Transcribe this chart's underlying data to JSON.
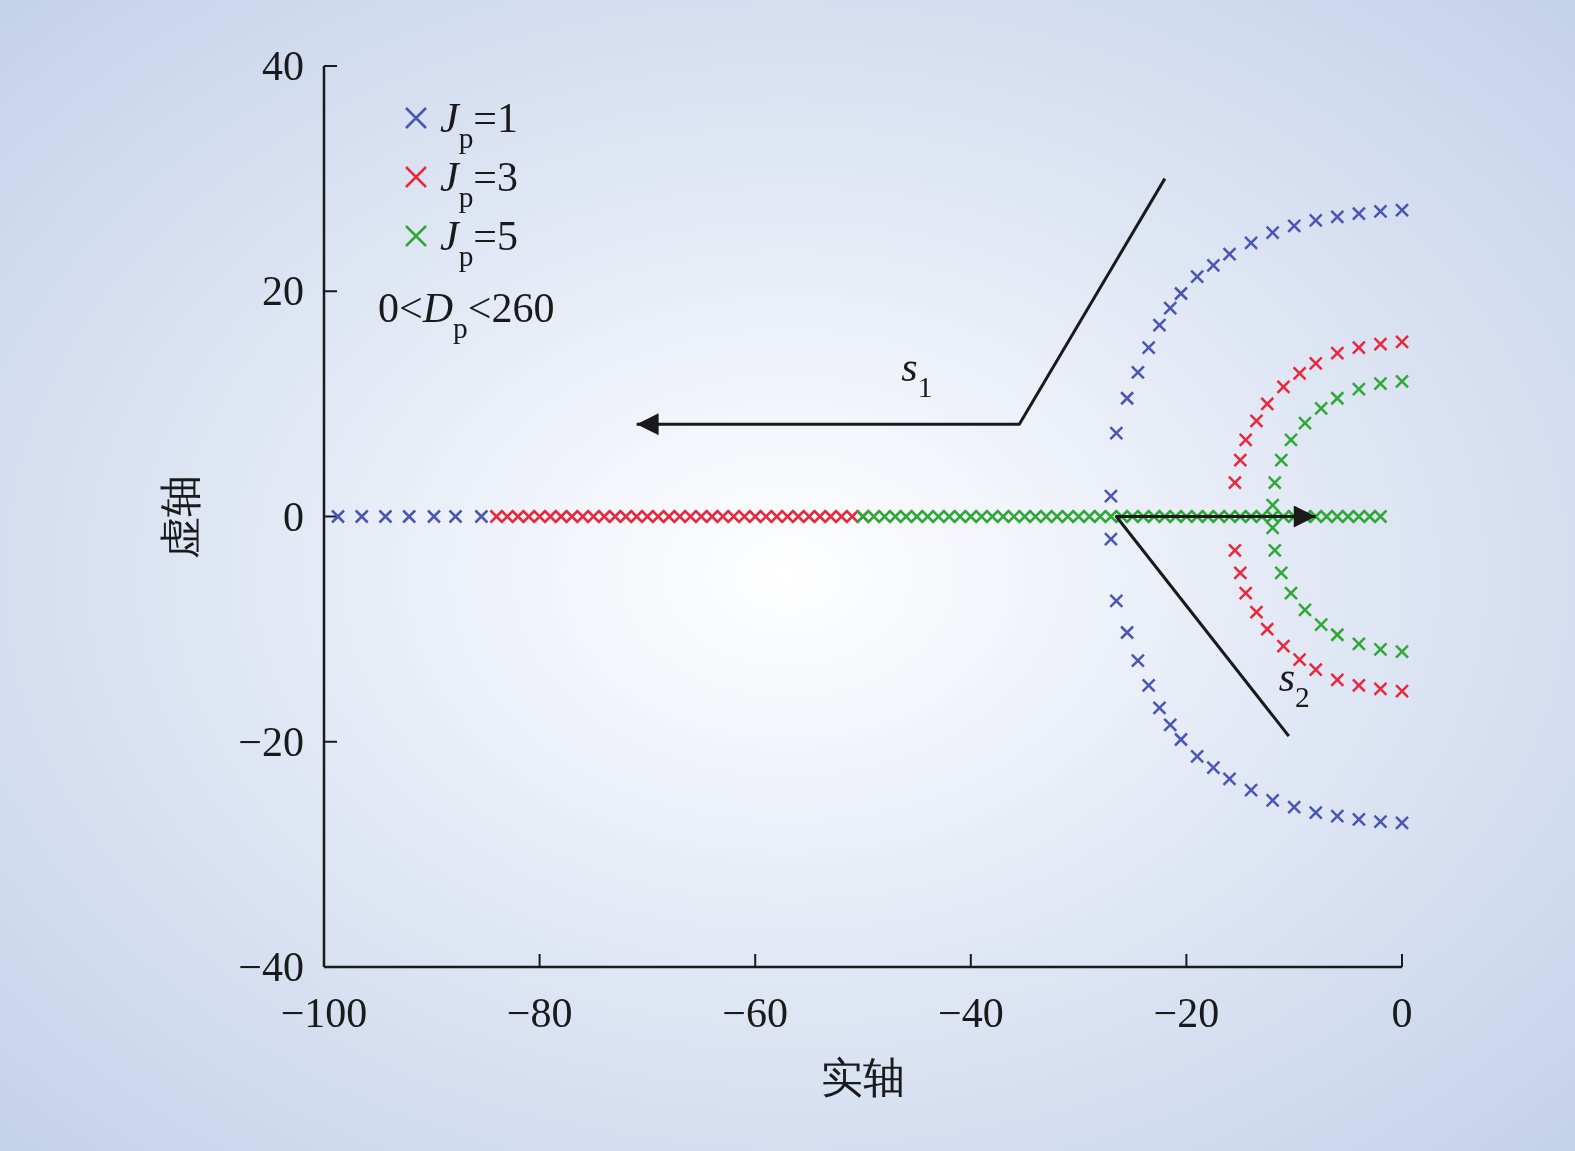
{
  "chart_data": {
    "type": "scatter",
    "xlabel": "实轴",
    "ylabel": "虚轴",
    "xlim": [
      -100,
      0
    ],
    "ylim": [
      -40,
      40
    ],
    "xticks": [
      -100,
      -80,
      -60,
      -40,
      -20,
      0
    ],
    "yticks": [
      -40,
      -20,
      0,
      20,
      40
    ],
    "grid": false,
    "legend": "top left",
    "marker": "cross",
    "series": [
      {
        "name": "*J*$_{p}$=1",
        "color": "#4a55b5",
        "x": [
          -98.7,
          -96.5,
          -94.3,
          -92.1,
          -89.8,
          -87.8,
          -85.4,
          -27,
          -26.5,
          -25.5,
          -24.5,
          -23.5,
          -22.5,
          -21.5,
          -20.5,
          -19,
          -17.5,
          -16,
          -14,
          -12,
          -10,
          -8,
          -6,
          -4,
          -2,
          0,
          -27,
          -26.5,
          -25.5,
          -24.5,
          -23.5,
          -22.5,
          -21.5,
          -20.5,
          -19,
          -17.5,
          -16,
          -14,
          -12,
          -10,
          -8,
          -6,
          -4,
          -2,
          0
        ],
        "values": [
          0,
          0,
          0,
          0,
          0,
          0,
          0,
          1.8,
          7.4,
          10.5,
          12.8,
          15,
          17,
          18.5,
          19.8,
          21.3,
          22.3,
          23.3,
          24.3,
          25.2,
          25.8,
          26.3,
          26.6,
          26.9,
          27.1,
          27.2,
          -2,
          -7.5,
          -10.3,
          -12.8,
          -15,
          -17,
          -18.5,
          -19.8,
          -21.3,
          -22.3,
          -23.3,
          -24.3,
          -25.2,
          -25.8,
          -26.3,
          -26.6,
          -26.9,
          -27.1,
          -27.2
        ]
      },
      {
        "name": "*J*$_{p}$=3",
        "color": "#e8283c",
        "x": [
          -84,
          -83,
          -82,
          -81,
          -80,
          -79,
          -78,
          -77,
          -76,
          -75,
          -74,
          -73,
          -72,
          -71,
          -70,
          -69,
          -68,
          -67,
          -66,
          -65,
          -64,
          -63,
          -62,
          -61,
          -60,
          -59,
          -58,
          -57,
          -56,
          -55,
          -54,
          -53,
          -52,
          -51,
          -50,
          -15.5,
          -15,
          -14.5,
          -13.5,
          -12.5,
          -11,
          -9.5,
          -8,
          -6,
          -4,
          -2,
          0,
          -15.5,
          -15,
          -14.5,
          -13.5,
          -12.5,
          -11,
          -9.5,
          -8,
          -6,
          -4,
          -2,
          0
        ],
        "values": [
          0,
          0,
          0,
          0,
          0,
          0,
          0,
          0,
          0,
          0,
          0,
          0,
          0,
          0,
          0,
          0,
          0,
          0,
          0,
          0,
          0,
          0,
          0,
          0,
          0,
          0,
          0,
          0,
          0,
          0,
          0,
          0,
          0,
          0,
          0,
          3,
          5,
          6.8,
          8.5,
          10,
          11.5,
          12.7,
          13.6,
          14.5,
          15,
          15.3,
          15.5,
          -3,
          -5,
          -6.8,
          -8.5,
          -10,
          -11.5,
          -12.7,
          -13.6,
          -14.5,
          -15,
          -15.3,
          -15.5
        ]
      },
      {
        "name": "*J*$_{p}$=5",
        "color": "#2ea836",
        "x": [
          -50,
          -49,
          -48,
          -47,
          -46,
          -45,
          -44,
          -43,
          -42,
          -41,
          -40,
          -39,
          -38,
          -37,
          -36,
          -35,
          -34,
          -33,
          -32,
          -31,
          -30,
          -29,
          -28,
          -27,
          -26,
          -25,
          -24,
          -23,
          -22,
          -21,
          -20,
          -19,
          -18,
          -17,
          -16,
          -15,
          -14,
          -13,
          -12,
          -11,
          -10,
          -9,
          -8,
          -7,
          -6,
          -5,
          -4,
          -3,
          -2,
          -12,
          -11.8,
          -11.2,
          -10.3,
          -9,
          -7.5,
          -6,
          -4,
          -2,
          0,
          -12,
          -11.8,
          -11.2,
          -10.3,
          -9,
          -7.5,
          -6,
          -4,
          -2,
          0
        ],
        "values": [
          0,
          0,
          0,
          0,
          0,
          0,
          0,
          0,
          0,
          0,
          0,
          0,
          0,
          0,
          0,
          0,
          0,
          0,
          0,
          0,
          0,
          0,
          0,
          0,
          0,
          0,
          0,
          0,
          0,
          0,
          0,
          0,
          0,
          0,
          0,
          0,
          0,
          0,
          0,
          0,
          0,
          0,
          0,
          0,
          0,
          0,
          0,
          0,
          0,
          1,
          3,
          5,
          6.8,
          8.3,
          9.6,
          10.5,
          11.3,
          11.8,
          12,
          -1,
          -3,
          -5,
          -6.8,
          -8.3,
          -9.6,
          -10.5,
          -11.3,
          -11.8,
          -12
        ]
      }
    ],
    "annotations": [
      "0<*D*$_{p}$<260",
      "*s*$_{1}$",
      {
        "text": "*s*$_{2}$",
        "x": -8,
        "y": 0
      }
    ]
  }
}
